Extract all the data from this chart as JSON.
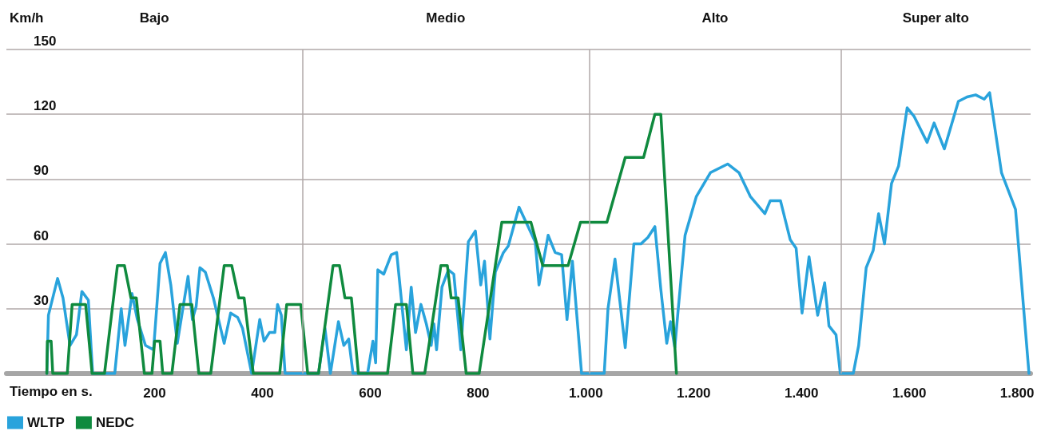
{
  "chart_data": {
    "type": "line",
    "ylabel": "Km/h",
    "xlabel": "Tiempo en s.",
    "xlim": [
      -75,
      1825
    ],
    "ylim": [
      0,
      150
    ],
    "xticks": [
      200,
      400,
      600,
      800,
      {
        "value": 1000,
        "label": "1.000"
      },
      {
        "value": 1200,
        "label": "1.200"
      },
      {
        "value": 1400,
        "label": "1.400"
      },
      {
        "value": 1600,
        "label": "1.600"
      },
      {
        "value": 1800,
        "label": "1.800"
      }
    ],
    "yticks": [
      {
        "value": 0,
        "label": null
      },
      30,
      60,
      90,
      120,
      150
    ],
    "grid": "y",
    "legend": "bottom left",
    "annotations": [
      "Bajo",
      "Medio",
      "Alto",
      "Super alto"
    ],
    "ref_lines": [
      {
        "axis": "x",
        "value": 474,
        "color": "#b0a8a8"
      },
      {
        "axis": "x",
        "value": 1006,
        "color": "#b0a8a8"
      },
      {
        "axis": "x",
        "value": 1473,
        "color": "#b0a8a8"
      }
    ],
    "series": [
      {
        "name": "WLTP",
        "color": "#29a3dc",
        "x": [
          0,
          3,
          20,
          30,
          43,
          55,
          65,
          77,
          85,
          126,
          138,
          145,
          158,
          168,
          183,
          198,
          210,
          220,
          230,
          242,
          262,
          270,
          277,
          284,
          294,
          309,
          329,
          341,
          354,
          363,
          380,
          395,
          403,
          413,
          423,
          428,
          435,
          442,
          504,
          516,
          526,
          541,
          551,
          560,
          568,
          595,
          605,
          610,
          614,
          625,
          639,
          649,
          667,
          676,
          684,
          694,
          704,
          713,
          718,
          723,
          733,
          745,
          755,
          768,
          782,
          795,
          805,
          812,
          822,
          832,
          847,
          856,
          876,
          891,
          906,
          913,
          930,
          943,
          955,
          965,
          975,
          992,
          1034,
          1041,
          1054,
          1073,
          1089,
          1102,
          1115,
          1128,
          1139,
          1150,
          1157,
          1165,
          1171,
          1184,
          1205,
          1231,
          1263,
          1284,
          1305,
          1332,
          1342,
          1361,
          1379,
          1390,
          1401,
          1414,
          1430,
          1443,
          1451,
          1464,
          1472,
          1496,
          1506,
          1520,
          1533,
          1543,
          1554,
          1567,
          1580,
          1596,
          1609,
          1633,
          1646,
          1665,
          1691,
          1707,
          1723,
          1739,
          1749,
          1771,
          1797,
          1822
        ],
        "values": [
          0,
          27,
          44,
          35,
          13,
          18,
          38,
          34,
          0,
          0,
          30,
          13,
          37,
          25,
          13,
          11,
          51,
          56,
          41,
          14,
          45,
          25,
          31,
          49,
          47,
          35,
          14,
          28,
          26,
          21,
          0,
          25,
          15,
          19,
          19,
          32,
          27,
          0,
          0,
          21,
          0,
          24,
          13,
          16,
          0,
          0,
          15,
          5,
          48,
          46,
          55,
          56,
          11,
          40,
          19,
          32,
          23,
          13,
          23,
          11,
          40,
          48,
          46,
          11,
          61,
          66,
          41,
          52,
          16,
          47,
          56,
          59,
          77,
          69,
          61,
          41,
          64,
          56,
          55,
          25,
          52,
          0,
          0,
          30,
          53,
          12,
          60,
          60,
          63,
          68,
          39,
          14,
          24,
          12,
          29,
          64,
          82,
          93,
          97,
          93,
          82,
          74,
          80,
          80,
          62,
          58,
          28,
          54,
          27,
          42,
          22,
          18,
          0,
          0,
          13,
          49,
          57,
          74,
          60,
          88,
          96,
          123,
          119,
          107,
          116,
          104,
          126,
          128,
          129,
          127,
          130,
          93,
          76,
          0
        ]
      },
      {
        "name": "NEDC",
        "color": "#0f8a3e",
        "x": [
          0,
          1,
          8,
          11,
          38,
          47,
          72,
          84,
          107,
          131,
          144,
          156,
          166,
          181,
          195,
          200,
          210,
          215,
          232,
          247,
          269,
          282,
          304,
          329,
          343,
          356,
          366,
          383,
          432,
          445,
          471,
          484,
          504,
          531,
          543,
          553,
          565,
          578,
          632,
          647,
          667,
          679,
          701,
          731,
          743,
          750,
          763,
          778,
          802,
          844,
          898,
          920,
          967,
          990,
          1039,
          1073,
          1107,
          1128,
          1139,
          1168
        ],
        "values": [
          0,
          15,
          15,
          0,
          0,
          32,
          32,
          0,
          0,
          50,
          50,
          35,
          35,
          0,
          0,
          15,
          15,
          0,
          0,
          32,
          32,
          0,
          0,
          50,
          50,
          35,
          35,
          0,
          0,
          32,
          32,
          0,
          0,
          50,
          50,
          35,
          35,
          0,
          0,
          32,
          32,
          0,
          0,
          50,
          50,
          35,
          35,
          0,
          0,
          70,
          70,
          50,
          50,
          70,
          70,
          100,
          100,
          120,
          120,
          0
        ]
      }
    ]
  }
}
